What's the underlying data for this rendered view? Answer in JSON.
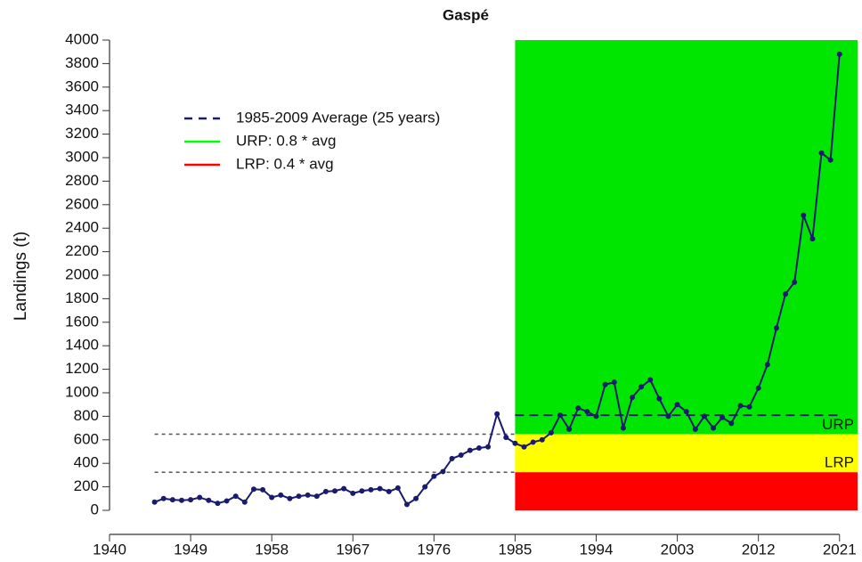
{
  "chart_data": {
    "type": "line",
    "title": "Gaspé",
    "y_label": "Landings (t)",
    "x": [
      1945,
      1946,
      1947,
      1948,
      1949,
      1950,
      1951,
      1952,
      1953,
      1954,
      1955,
      1956,
      1957,
      1958,
      1959,
      1960,
      1961,
      1962,
      1963,
      1964,
      1965,
      1966,
      1967,
      1968,
      1969,
      1970,
      1971,
      1972,
      1973,
      1974,
      1975,
      1976,
      1977,
      1978,
      1979,
      1980,
      1981,
      1982,
      1983,
      1984,
      1985,
      1986,
      1987,
      1988,
      1989,
      1990,
      1991,
      1992,
      1993,
      1994,
      1995,
      1996,
      1997,
      1998,
      1999,
      2000,
      2001,
      2002,
      2003,
      2004,
      2005,
      2006,
      2007,
      2008,
      2009,
      2010,
      2011,
      2012,
      2013,
      2014,
      2015,
      2016,
      2017,
      2018,
      2019,
      2020,
      2021
    ],
    "values": [
      70,
      100,
      90,
      85,
      90,
      110,
      85,
      60,
      80,
      120,
      70,
      180,
      175,
      110,
      130,
      100,
      120,
      130,
      120,
      160,
      165,
      185,
      145,
      165,
      175,
      185,
      160,
      190,
      50,
      100,
      200,
      290,
      330,
      440,
      470,
      510,
      530,
      540,
      820,
      620,
      570,
      540,
      580,
      600,
      660,
      810,
      690,
      870,
      840,
      800,
      1070,
      1090,
      700,
      960,
      1050,
      1110,
      950,
      800,
      900,
      840,
      690,
      800,
      700,
      790,
      740,
      890,
      880,
      1040,
      1240,
      1550,
      1840,
      1940,
      2510,
      2310,
      3040,
      2980,
      3880
    ],
    "color": "#1a1a6e",
    "xlim": [
      1940,
      2023
    ],
    "xticks": [
      1940,
      1949,
      1958,
      1967,
      1976,
      1985,
      1994,
      2003,
      2012,
      2021
    ],
    "ylim": [
      0,
      4000
    ],
    "yticks": [
      0,
      200,
      400,
      600,
      800,
      1000,
      1200,
      1400,
      1600,
      1800,
      2000,
      2200,
      2400,
      2600,
      2800,
      3000,
      3200,
      3400,
      3600,
      3800,
      4000
    ],
    "zone_start": 1985,
    "historic_start": 1945,
    "average": {
      "value": 810,
      "end": 2021,
      "color": "#1a1a6e"
    },
    "urp": {
      "label": "URP",
      "value": 648,
      "color": "#00e600"
    },
    "lrp": {
      "label": "LRP",
      "value": 324,
      "color": "#ff0000"
    },
    "middle_color": "#ffff00",
    "legend": [
      {
        "name": "1985-2009 Average (25 years)",
        "color": "#1a1a6e",
        "dashed": true
      },
      {
        "name": "URP: 0.8 * avg",
        "color": "#00ff00",
        "dashed": false
      },
      {
        "name": "LRP: 0.4 * avg",
        "color": "#ff0000",
        "dashed": false
      }
    ]
  }
}
